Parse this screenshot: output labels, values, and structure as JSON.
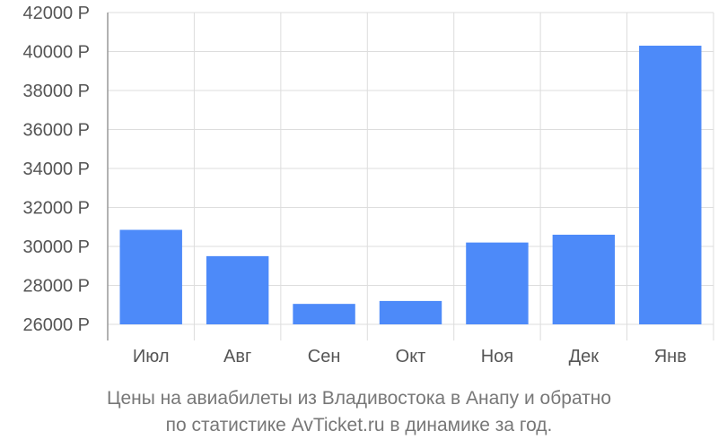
{
  "chart_data": {
    "type": "bar",
    "categories": [
      "Июл",
      "Авг",
      "Сен",
      "Окт",
      "Ноя",
      "Дек",
      "Янв"
    ],
    "values": [
      30850,
      29500,
      27050,
      27200,
      30200,
      30600,
      40300
    ],
    "ylim": [
      26000,
      42000
    ],
    "y_ticks": [
      26000,
      28000,
      30000,
      32000,
      34000,
      36000,
      38000,
      40000,
      42000
    ],
    "y_tick_labels": [
      "26000 Р",
      "28000 Р",
      "30000 Р",
      "32000 Р",
      "34000 Р",
      "36000 Р",
      "38000 Р",
      "40000 Р",
      "42000 Р"
    ],
    "grid": true,
    "bar_color": "#4d8af9"
  },
  "caption": {
    "line1": "Цены на авиабилеты из Владивостока в Анапу и обратно",
    "line2": "по статистике AvTicket.ru в динамике за год."
  }
}
